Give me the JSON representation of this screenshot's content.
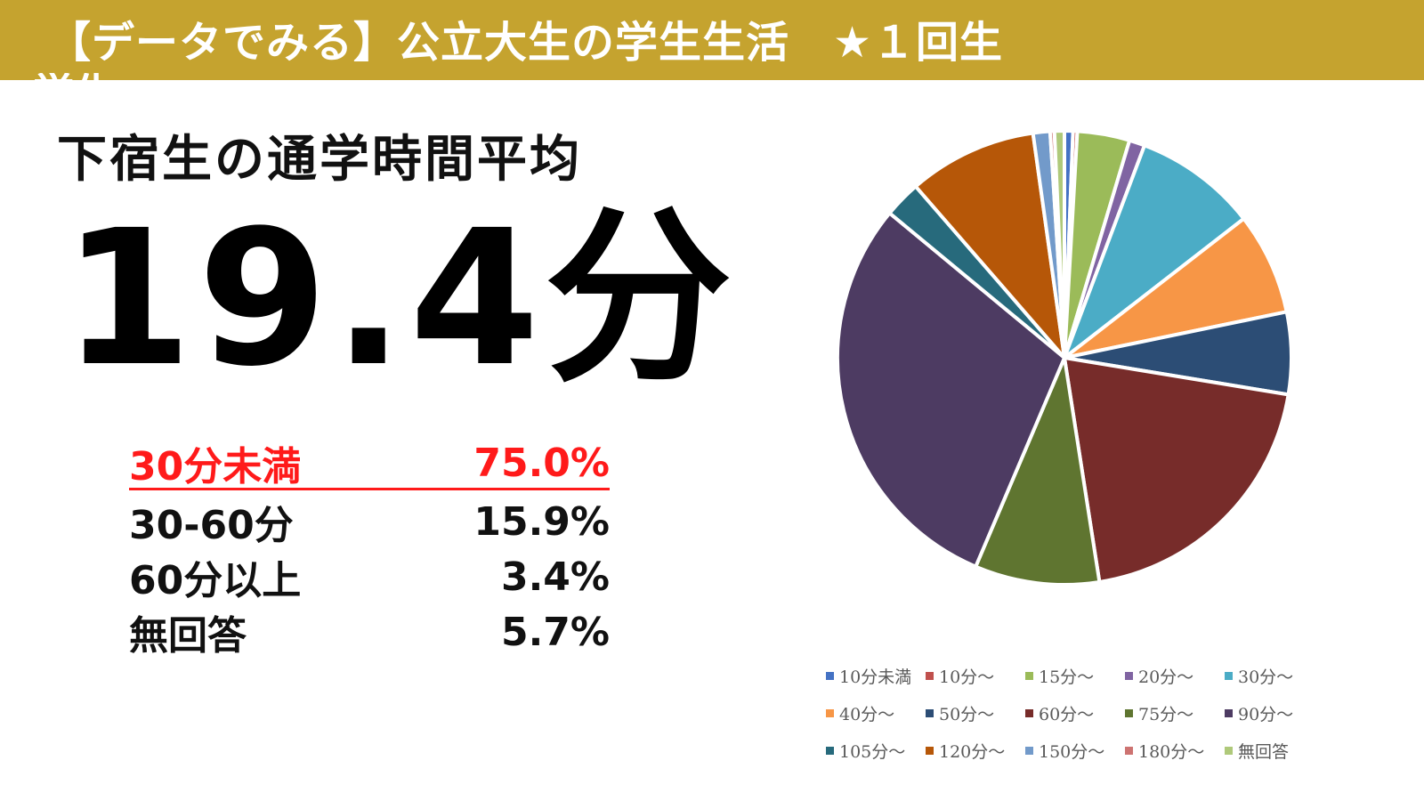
{
  "header": {
    "title": "【データでみる】公立大生の学生生活　★１回生",
    "overflow_text": "学生"
  },
  "summary": {
    "subtitle": "下宿生の通学時間平均",
    "big_value": "19.4分",
    "rows": [
      {
        "label": "30分未満",
        "pct": "75.0%",
        "highlight": true
      },
      {
        "label": "30-60分",
        "pct": "15.9%",
        "highlight": false
      },
      {
        "label": "60分以上",
        "pct": "3.4%",
        "highlight": false
      },
      {
        "label": "無回答",
        "pct": "5.7%",
        "highlight": false
      }
    ]
  },
  "colors": {
    "banner": "#c5a32f",
    "highlight": "#ff1a1a"
  },
  "chart_data": {
    "type": "pie",
    "start_angle_deg": 0,
    "direction": "clockwise",
    "categories": [
      "10分未満",
      "10分～",
      "15分～",
      "20分～",
      "30分～",
      "40分～",
      "50分～",
      "60分～",
      "75分～",
      "90分～",
      "105分～",
      "120分～",
      "150分～",
      "180分～",
      "無回答"
    ],
    "values": [
      0.6,
      0.3,
      3.7,
      1.1,
      8.7,
      7.2,
      5.8,
      19.8,
      8.8,
      29.4,
      2.6,
      9.1,
      1.2,
      0.3,
      0.7
    ],
    "colors": [
      "#4472c4",
      "#c0504d",
      "#9bbb59",
      "#8064a2",
      "#4bacc6",
      "#f79646",
      "#2c4d75",
      "#772c2a",
      "#5f7530",
      "#4d3b62",
      "#276a7c",
      "#b65708",
      "#729aca",
      "#cd7371",
      "#afc97a"
    ],
    "legend_position": "bottom"
  }
}
